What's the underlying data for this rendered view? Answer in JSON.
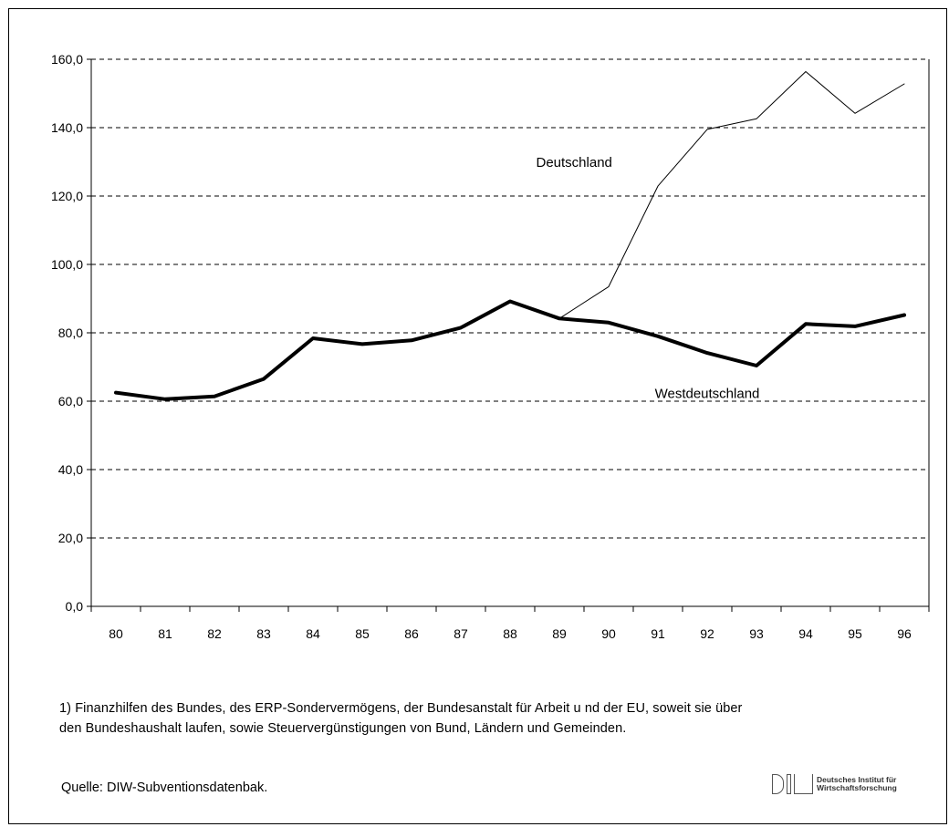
{
  "chart_data": {
    "type": "line",
    "categories": [
      "80",
      "81",
      "82",
      "83",
      "84",
      "85",
      "86",
      "87",
      "88",
      "89",
      "90",
      "91",
      "92",
      "93",
      "94",
      "95",
      "96"
    ],
    "series": [
      {
        "name": "Deutschland",
        "values": [
          62.5,
          60.6,
          61.4,
          66.5,
          78.4,
          76.7,
          77.8,
          81.5,
          89.2,
          84.2,
          93.5,
          122.9,
          139.5,
          142.6,
          156.4,
          144.2,
          152.8
        ],
        "line": "thin"
      },
      {
        "name": "Westdeutschland",
        "values": [
          62.5,
          60.6,
          61.4,
          66.5,
          78.4,
          76.7,
          77.8,
          81.5,
          89.2,
          84.2,
          83.0,
          79.0,
          74.1,
          70.4,
          82.6,
          81.9,
          85.2
        ],
        "line": "thick"
      }
    ],
    "ylim": [
      0,
      160
    ],
    "yticks": [
      0,
      20,
      40,
      60,
      80,
      100,
      120,
      140,
      160
    ],
    "ytick_labels": [
      "0,0",
      "20,0",
      "40,0",
      "60,0",
      "80,0",
      "100,0",
      "120,0",
      "140,0",
      "160,0"
    ],
    "grid": "horizontal-dashed",
    "title": "",
    "xlabel": "",
    "ylabel": ""
  },
  "footnote": {
    "line1": "1)  Finanzhilfen des Bundes, des ERP-Sondervermögens, der Bundesanstalt für Arbeit u nd der EU, soweit sie über",
    "line2": "den Bundeshaushalt laufen, sowie Steuervergünstigungen von Bund, Ländern und Gemeinden."
  },
  "source": "Quelle: DIW-Subventionsdatenbak.",
  "logo": {
    "mark": "DIW",
    "line1": "Deutsches Institut für",
    "line2": "Wirtschaftsforschung"
  }
}
